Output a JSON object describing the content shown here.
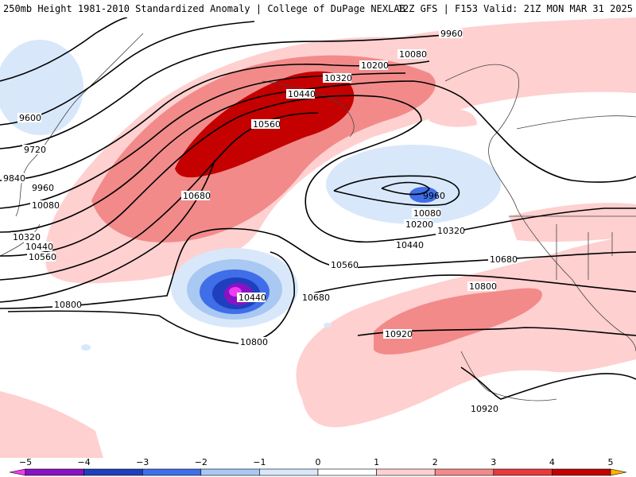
{
  "header": {
    "left_title": "250mb Height 1981-2010 Standardized Anomaly | College of DuPage NEXLAB",
    "right_title": "12Z GFS | F153 Valid: 21Z MON MAR 31 2025"
  },
  "contour_labels": [
    "9600",
    "9720",
    "9840",
    "9960",
    "10080",
    "10320",
    "10440",
    "10560",
    "10800",
    "10680",
    "10560",
    "10440",
    "10200",
    "10320",
    "10080",
    "9960",
    "10080",
    "10200",
    "10320",
    "10440",
    "10560",
    "10680",
    "10800",
    "10440",
    "10680",
    "10560",
    "10800",
    "10920",
    "10920",
    "10680",
    "9960"
  ],
  "colorbar": {
    "ticks": [
      "−5",
      "−4",
      "−3",
      "−2",
      "−1",
      "0",
      "1",
      "2",
      "3",
      "4",
      "5"
    ],
    "colors": [
      "#f03cf0",
      "#8a12c4",
      "#1f3fbf",
      "#3f6ee8",
      "#a9c8f2",
      "#d8e8fa",
      "#ffffff",
      "#ffd0d0",
      "#f28a8a",
      "#e83a3a",
      "#c40000",
      "#f28c00",
      "#ffb000"
    ]
  }
}
